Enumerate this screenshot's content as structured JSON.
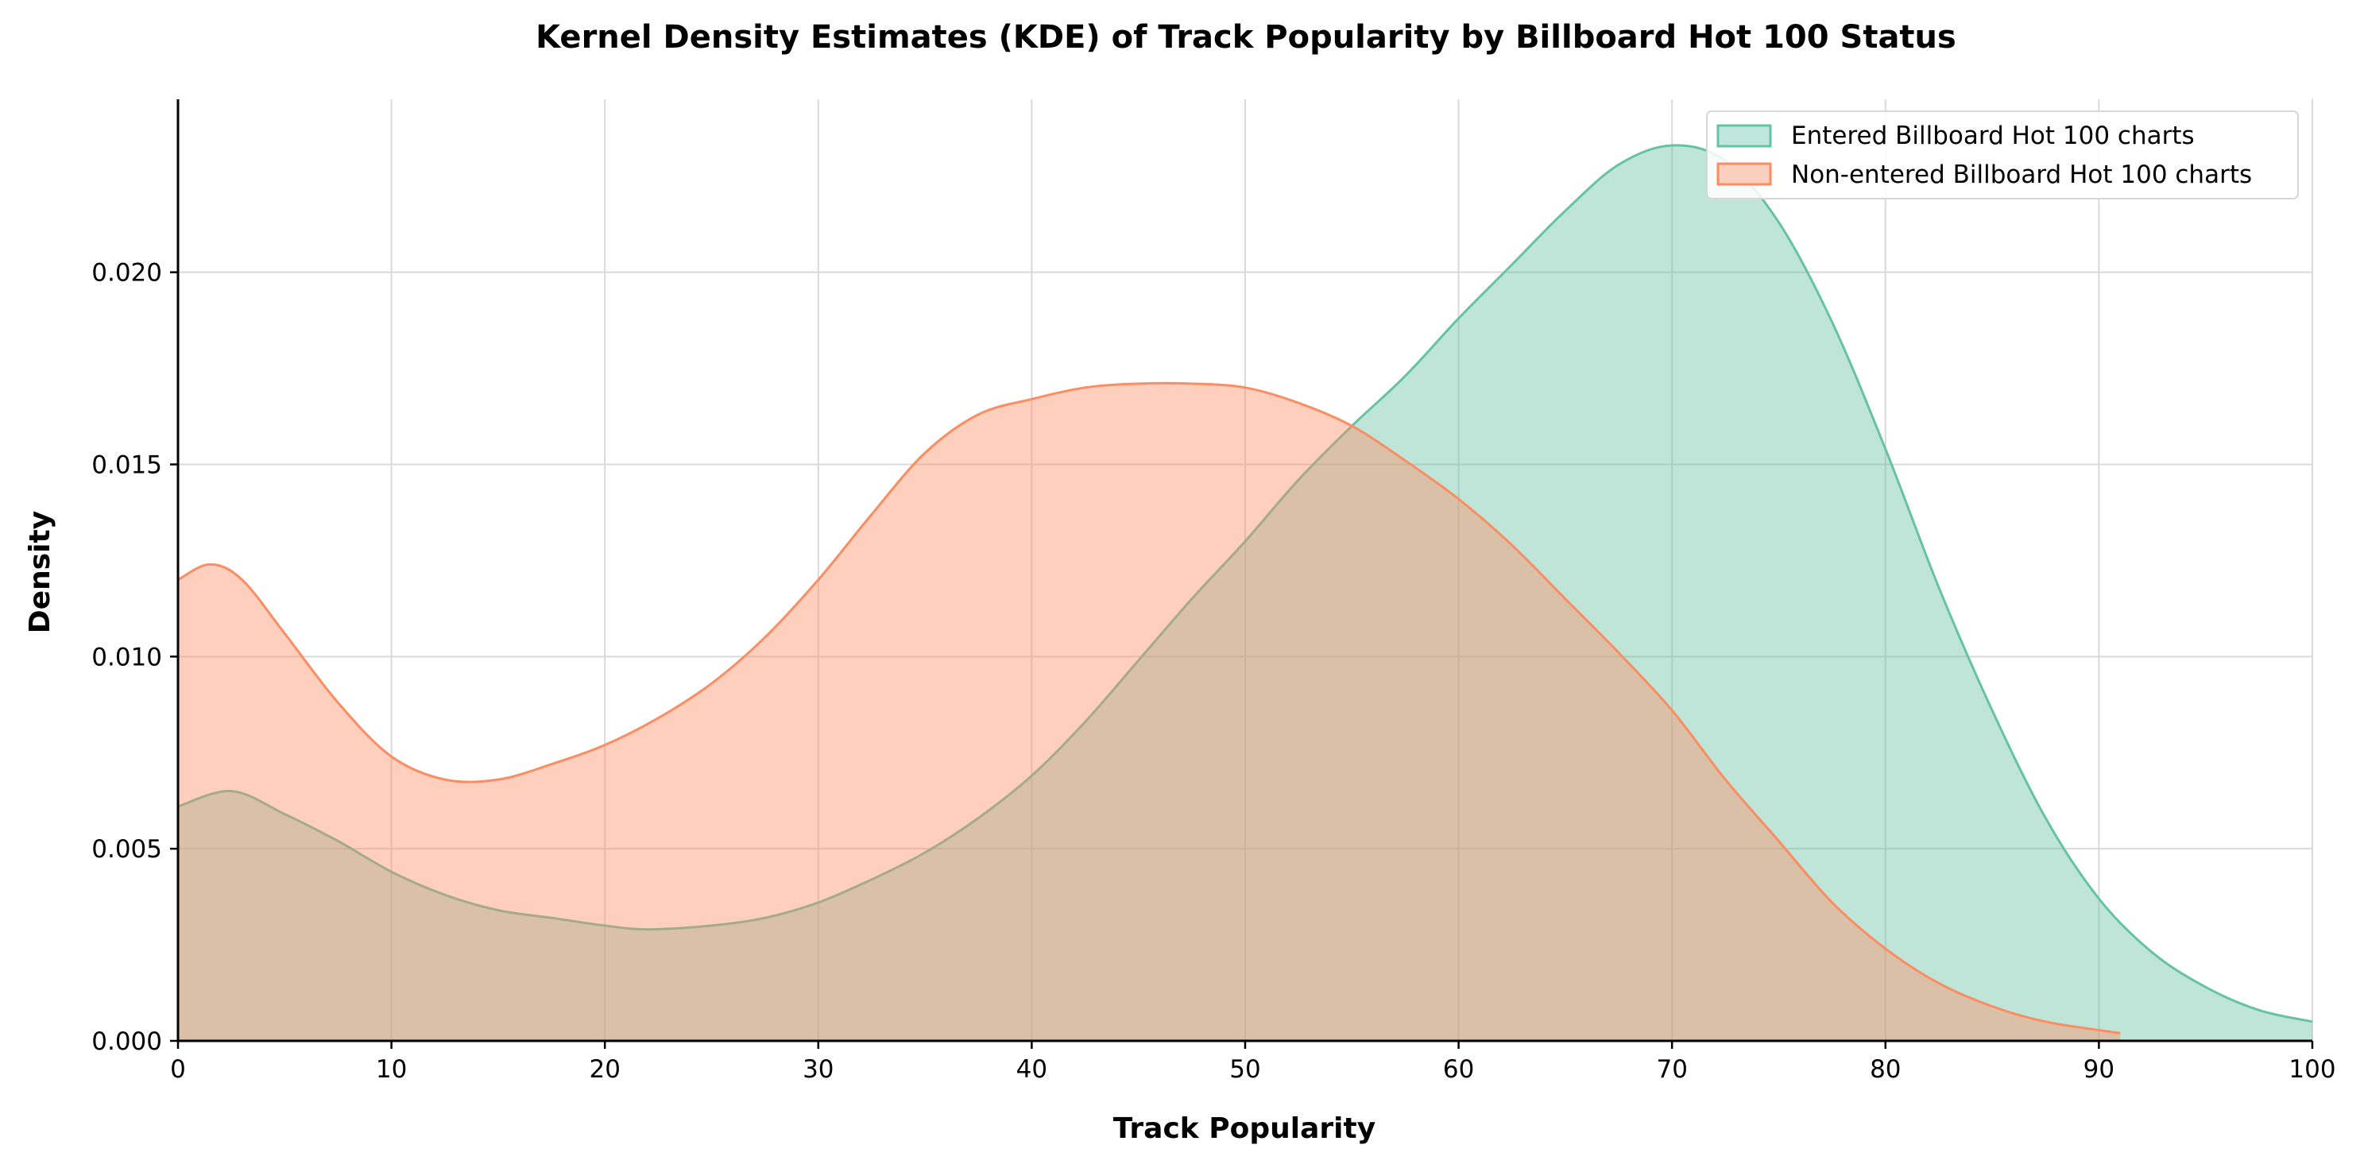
{
  "chart_data": {
    "type": "area",
    "title": "Kernel Density Estimates (KDE) of Track Popularity by Billboard Hot 100 Status",
    "xlabel": "Track Popularity",
    "ylabel": "Density",
    "xlim": [
      0,
      100
    ],
    "ylim": [
      0,
      0.0245
    ],
    "x_ticks": [
      "0",
      "10",
      "20",
      "30",
      "40",
      "50",
      "60",
      "70",
      "80",
      "90",
      "100"
    ],
    "y_ticks": [
      "0.000",
      "0.005",
      "0.010",
      "0.015",
      "0.020"
    ],
    "grid": true,
    "legend_position": "top-right",
    "series": [
      {
        "name": "Entered Billboard Hot 100 charts",
        "color": "#66c2a5",
        "fill": "#c0e7dc",
        "points": [
          [
            0,
            0.0061
          ],
          [
            2.5,
            0.0065
          ],
          [
            5,
            0.0059
          ],
          [
            7.5,
            0.0052
          ],
          [
            10,
            0.0044
          ],
          [
            12.5,
            0.0038
          ],
          [
            15,
            0.0034
          ],
          [
            17.5,
            0.0032
          ],
          [
            20,
            0.003
          ],
          [
            22,
            0.0029
          ],
          [
            25,
            0.003
          ],
          [
            27.5,
            0.0032
          ],
          [
            30,
            0.0036
          ],
          [
            32.5,
            0.0042
          ],
          [
            35,
            0.0049
          ],
          [
            37.5,
            0.0058
          ],
          [
            40,
            0.0069
          ],
          [
            42.5,
            0.0083
          ],
          [
            45,
            0.0099
          ],
          [
            47.5,
            0.0115
          ],
          [
            50,
            0.013
          ],
          [
            52.5,
            0.0146
          ],
          [
            55,
            0.016
          ],
          [
            57.5,
            0.0173
          ],
          [
            60,
            0.0188
          ],
          [
            62.5,
            0.0202
          ],
          [
            65,
            0.0216
          ],
          [
            67.5,
            0.0228
          ],
          [
            70,
            0.0233
          ],
          [
            72.5,
            0.0229
          ],
          [
            75,
            0.0213
          ],
          [
            77.5,
            0.0187
          ],
          [
            80,
            0.0154
          ],
          [
            82.5,
            0.0118
          ],
          [
            85,
            0.0086
          ],
          [
            87.5,
            0.0058
          ],
          [
            90,
            0.0037
          ],
          [
            92.5,
            0.0023
          ],
          [
            95,
            0.0014
          ],
          [
            97.5,
            0.0008
          ],
          [
            100,
            0.0005
          ]
        ]
      },
      {
        "name": "Non-entered Billboard Hot 100 charts",
        "color": "#fc8d62",
        "fill": "#fbcfbe",
        "points": [
          [
            0,
            0.012
          ],
          [
            1.5,
            0.0124
          ],
          [
            3,
            0.012
          ],
          [
            5,
            0.0106
          ],
          [
            7.5,
            0.0088
          ],
          [
            10,
            0.0074
          ],
          [
            12.5,
            0.0068
          ],
          [
            15,
            0.0068
          ],
          [
            17.5,
            0.0072
          ],
          [
            20,
            0.0077
          ],
          [
            22.5,
            0.0084
          ],
          [
            25,
            0.0093
          ],
          [
            27.5,
            0.0105
          ],
          [
            30,
            0.012
          ],
          [
            32.5,
            0.0137
          ],
          [
            35,
            0.0153
          ],
          [
            37.5,
            0.0163
          ],
          [
            40,
            0.0167
          ],
          [
            42.5,
            0.017
          ],
          [
            45,
            0.0171
          ],
          [
            47.5,
            0.0171
          ],
          [
            50,
            0.017
          ],
          [
            52.5,
            0.0166
          ],
          [
            55,
            0.016
          ],
          [
            57.5,
            0.0151
          ],
          [
            60,
            0.0141
          ],
          [
            62.5,
            0.0129
          ],
          [
            65,
            0.0115
          ],
          [
            67.5,
            0.0101
          ],
          [
            70,
            0.0086
          ],
          [
            72.5,
            0.0068
          ],
          [
            75,
            0.0052
          ],
          [
            77.5,
            0.0036
          ],
          [
            80,
            0.0024
          ],
          [
            82.5,
            0.0015
          ],
          [
            85,
            0.0009
          ],
          [
            87.5,
            0.0005
          ],
          [
            91,
            0.0002
          ]
        ]
      }
    ]
  }
}
